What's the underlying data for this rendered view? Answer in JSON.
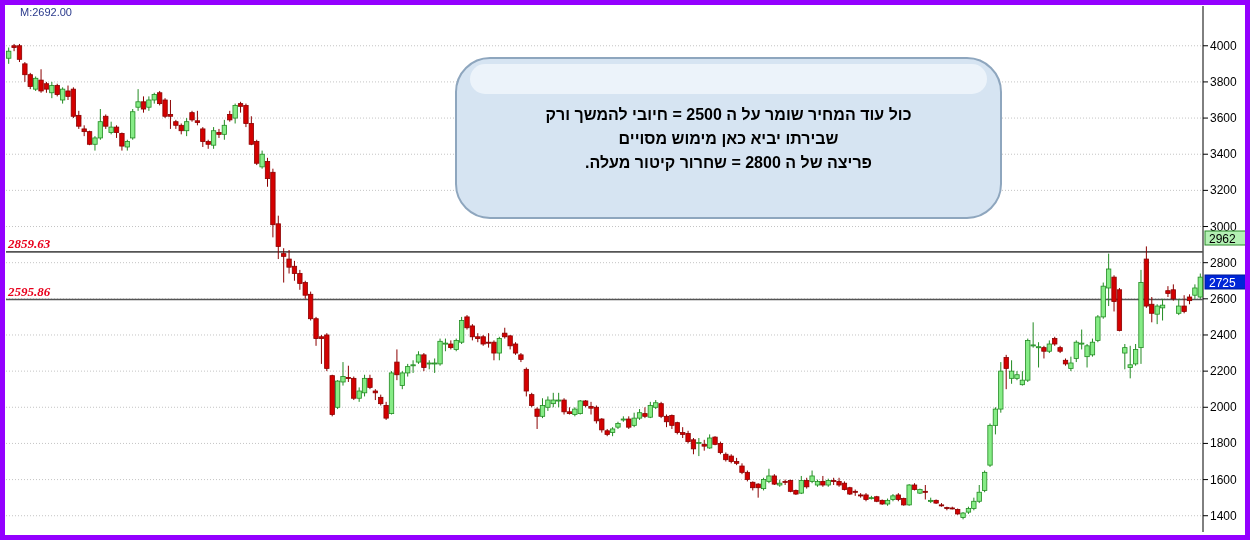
{
  "chart_data": {
    "type": "candlestick",
    "categories": [
      null,
      null,
      null,
      null,
      null,
      null,
      null,
      null,
      null,
      null,
      null,
      null,
      null,
      null,
      null,
      null,
      null,
      null,
      null,
      null,
      null,
      null,
      null,
      null,
      null,
      null,
      null,
      null,
      null,
      null,
      null,
      null,
      null,
      null,
      null,
      null,
      null,
      null,
      null,
      null,
      null,
      null,
      null,
      null,
      null,
      null,
      null,
      null,
      null,
      null,
      null,
      null,
      null,
      null,
      null,
      null,
      null,
      null,
      null,
      null,
      null,
      null,
      null,
      null,
      null,
      null,
      null,
      null,
      null,
      null,
      null,
      null,
      null,
      null,
      null,
      null,
      null,
      null,
      null,
      null,
      null,
      null,
      null,
      null,
      null,
      null,
      null,
      null,
      null,
      null,
      null,
      null,
      null,
      null,
      null,
      null,
      null,
      null,
      null,
      null,
      null,
      null,
      null,
      null,
      null,
      null,
      null,
      null,
      null,
      null,
      null,
      null,
      null,
      null,
      null,
      null,
      null,
      null,
      null,
      null,
      null,
      null,
      null,
      null,
      null,
      null,
      null,
      null,
      null,
      null,
      null,
      null,
      null,
      null,
      null,
      null,
      null,
      null,
      null,
      null,
      null,
      null,
      null,
      null,
      null,
      null,
      null,
      null,
      null,
      null,
      null,
      null,
      null,
      null,
      null,
      null,
      null,
      null,
      null,
      null,
      null,
      null,
      null,
      null,
      null,
      null,
      null,
      null,
      null,
      null,
      null,
      null,
      null,
      null,
      null,
      null,
      null,
      null,
      null,
      null,
      null,
      null,
      null,
      null,
      null,
      null,
      null,
      null,
      null,
      null,
      null,
      null,
      null,
      null,
      null,
      null,
      null,
      null,
      null,
      null,
      null,
      null,
      null,
      null,
      null,
      null,
      null,
      null,
      null,
      null,
      null,
      null,
      null,
      null,
      null,
      null,
      null,
      null,
      null,
      null,
      null,
      null
    ],
    "ohlc": [
      [
        3931,
        3990,
        3900,
        3970
      ],
      [
        4000,
        4010,
        3970,
        3990
      ],
      [
        4000,
        4010,
        3910,
        3925
      ],
      [
        3900,
        3910,
        3800,
        3840
      ],
      [
        3840,
        3850,
        3760,
        3775
      ],
      [
        3760,
        3830,
        3750,
        3820
      ],
      [
        3810,
        3870,
        3740,
        3750
      ],
      [
        3790,
        3800,
        3740,
        3760
      ],
      [
        3740,
        3800,
        3710,
        3780
      ],
      [
        3780,
        3790,
        3720,
        3730
      ],
      [
        3700,
        3770,
        3680,
        3760
      ],
      [
        3750,
        3780,
        3700,
        3720
      ],
      [
        3760,
        3770,
        3600,
        3610
      ],
      [
        3615,
        3640,
        3540,
        3555
      ],
      [
        3540,
        3560,
        3500,
        3525
      ],
      [
        3525,
        3530,
        3450,
        3455
      ],
      [
        3455,
        3500,
        3420,
        3490
      ],
      [
        3490,
        3650,
        3480,
        3580
      ],
      [
        3610,
        3620,
        3540,
        3555
      ],
      [
        3520,
        3580,
        3510,
        3550
      ],
      [
        3550,
        3560,
        3490,
        3520
      ],
      [
        3515,
        3520,
        3420,
        3445
      ],
      [
        3440,
        3480,
        3420,
        3470
      ],
      [
        3490,
        3650,
        3480,
        3635
      ],
      [
        3660,
        3760,
        3640,
        3690
      ],
      [
        3690,
        3720,
        3630,
        3650
      ],
      [
        3660,
        3720,
        3640,
        3700
      ],
      [
        3700,
        3740,
        3680,
        3730
      ],
      [
        3740,
        3750,
        3670,
        3680
      ],
      [
        3700,
        3710,
        3600,
        3610
      ],
      [
        3620,
        3700,
        3540,
        3610
      ],
      [
        3580,
        3590,
        3540,
        3560
      ],
      [
        3560,
        3570,
        3510,
        3530
      ],
      [
        3530,
        3600,
        3500,
        3580
      ],
      [
        3630,
        3640,
        3580,
        3590
      ],
      [
        3585,
        3640,
        3560,
        3575
      ],
      [
        3540,
        3550,
        3440,
        3470
      ],
      [
        3470,
        3480,
        3430,
        3455
      ],
      [
        3450,
        3550,
        3430,
        3530
      ],
      [
        3520,
        3540,
        3490,
        3510
      ],
      [
        3510,
        3590,
        3480,
        3560
      ],
      [
        3620,
        3640,
        3580,
        3590
      ],
      [
        3600,
        3680,
        3570,
        3670
      ],
      [
        3680,
        3690,
        3630,
        3665
      ],
      [
        3670,
        3680,
        3550,
        3570
      ],
      [
        3570,
        3610,
        3450,
        3455
      ],
      [
        3470,
        3480,
        3340,
        3350
      ],
      [
        3330,
        3420,
        3320,
        3400
      ],
      [
        3360,
        3380,
        3220,
        3265
      ],
      [
        3300,
        3320,
        2940,
        3010
      ],
      [
        3015,
        3060,
        2820,
        2890
      ],
      [
        2850,
        2880,
        2690,
        2835
      ],
      [
        2820,
        2870,
        2740,
        2775
      ],
      [
        2780,
        2810,
        2700,
        2740
      ],
      [
        2740,
        2760,
        2650,
        2685
      ],
      [
        2690,
        2700,
        2600,
        2620
      ],
      [
        2625,
        2640,
        2480,
        2490
      ],
      [
        2490,
        2500,
        2340,
        2380
      ],
      [
        2390,
        2400,
        2240,
        2380
      ],
      [
        2400,
        2410,
        2200,
        2215
      ],
      [
        2175,
        2180,
        1950,
        1960
      ],
      [
        2000,
        2150,
        1990,
        2145
      ],
      [
        2140,
        2250,
        2120,
        2170
      ],
      [
        2165,
        2230,
        2140,
        2160
      ],
      [
        2160,
        2170,
        2040,
        2050
      ],
      [
        2050,
        2110,
        2030,
        2090
      ],
      [
        2080,
        2180,
        2060,
        2160
      ],
      [
        2160,
        2180,
        2100,
        2110
      ],
      [
        2090,
        2100,
        2040,
        2080
      ],
      [
        2055,
        2070,
        2010,
        2020
      ],
      [
        2010,
        2030,
        1930,
        1940
      ],
      [
        1965,
        2200,
        1960,
        2190
      ],
      [
        2250,
        2320,
        2150,
        2180
      ],
      [
        2120,
        2200,
        2100,
        2190
      ],
      [
        2190,
        2240,
        2170,
        2225
      ],
      [
        2230,
        2260,
        2190,
        2235
      ],
      [
        2250,
        2310,
        2240,
        2290
      ],
      [
        2290,
        2300,
        2200,
        2220
      ],
      [
        2240,
        2260,
        2210,
        2245
      ],
      [
        2240,
        2270,
        2190,
        2245
      ],
      [
        2240,
        2380,
        2230,
        2365
      ],
      [
        2350,
        2380,
        2310,
        2355
      ],
      [
        2350,
        2370,
        2320,
        2330
      ],
      [
        2320,
        2380,
        2310,
        2370
      ],
      [
        2360,
        2500,
        2350,
        2480
      ],
      [
        2500,
        2510,
        2430,
        2440
      ],
      [
        2450,
        2460,
        2370,
        2390
      ],
      [
        2390,
        2410,
        2360,
        2380
      ],
      [
        2390,
        2400,
        2340,
        2350
      ],
      [
        2360,
        2410,
        2330,
        2355
      ],
      [
        2360,
        2370,
        2260,
        2300
      ],
      [
        2300,
        2390,
        2260,
        2380
      ],
      [
        2410,
        2440,
        2380,
        2390
      ],
      [
        2395,
        2400,
        2320,
        2340
      ],
      [
        2350,
        2360,
        2290,
        2300
      ],
      [
        2290,
        2300,
        2250,
        2265
      ],
      [
        2210,
        2220,
        2060,
        2090
      ],
      [
        2070,
        2080,
        2000,
        2010
      ],
      [
        1990,
        2000,
        1880,
        1950
      ],
      [
        1950,
        2050,
        1940,
        2010
      ],
      [
        2000,
        2060,
        1980,
        2040
      ],
      [
        2020,
        2080,
        2000,
        2040
      ],
      [
        2035,
        2080,
        2000,
        2040
      ],
      [
        2040,
        2050,
        1960,
        1975
      ],
      [
        1975,
        2000,
        1960,
        1965
      ],
      [
        1960,
        2000,
        1950,
        1990
      ],
      [
        1965,
        2040,
        1960,
        2035
      ],
      [
        2035,
        2040,
        2000,
        2010
      ],
      [
        2005,
        2030,
        1960,
        1995
      ],
      [
        2000,
        2010,
        1910,
        1925
      ],
      [
        1935,
        1940,
        1860,
        1875
      ],
      [
        1870,
        1880,
        1840,
        1850
      ],
      [
        1860,
        1890,
        1840,
        1880
      ],
      [
        1890,
        1920,
        1880,
        1910
      ],
      [
        1930,
        1950,
        1920,
        1935
      ],
      [
        1935,
        1950,
        1880,
        1890
      ],
      [
        1900,
        1970,
        1890,
        1940
      ],
      [
        1940,
        1990,
        1930,
        1970
      ],
      [
        1965,
        2000,
        1940,
        1950
      ],
      [
        1945,
        2030,
        1940,
        2010
      ],
      [
        2000,
        2040,
        1990,
        2025
      ],
      [
        2020,
        2030,
        1940,
        1950
      ],
      [
        1950,
        1960,
        1890,
        1920
      ],
      [
        1955,
        1960,
        1880,
        1900
      ],
      [
        1915,
        1920,
        1850,
        1860
      ],
      [
        1860,
        1890,
        1830,
        1850
      ],
      [
        1855,
        1870,
        1800,
        1810
      ],
      [
        1820,
        1830,
        1740,
        1770
      ],
      [
        1800,
        1830,
        1730,
        1805
      ],
      [
        1795,
        1820,
        1760,
        1785
      ],
      [
        1775,
        1850,
        1770,
        1830
      ],
      [
        1835,
        1840,
        1790,
        1795
      ],
      [
        1800,
        1810,
        1740,
        1750
      ],
      [
        1740,
        1750,
        1700,
        1710
      ],
      [
        1730,
        1740,
        1690,
        1700
      ],
      [
        1700,
        1720,
        1680,
        1690
      ],
      [
        1675,
        1690,
        1630,
        1640
      ],
      [
        1640,
        1650,
        1590,
        1600
      ],
      [
        1585,
        1590,
        1540,
        1555
      ],
      [
        1575,
        1580,
        1500,
        1555
      ],
      [
        1550,
        1610,
        1540,
        1600
      ],
      [
        1590,
        1660,
        1580,
        1620
      ],
      [
        1620,
        1630,
        1570,
        1575
      ],
      [
        1570,
        1600,
        1560,
        1580
      ],
      [
        1590,
        1600,
        1570,
        1585
      ],
      [
        1595,
        1600,
        1530,
        1535
      ],
      [
        1540,
        1545,
        1515,
        1520
      ],
      [
        1525,
        1620,
        1520,
        1595
      ],
      [
        1595,
        1610,
        1550,
        1560
      ],
      [
        1590,
        1650,
        1580,
        1620
      ],
      [
        1570,
        1600,
        1560,
        1590
      ],
      [
        1590,
        1620,
        1560,
        1570
      ],
      [
        1570,
        1605,
        1560,
        1595
      ],
      [
        1595,
        1610,
        1570,
        1590
      ],
      [
        1590,
        1610,
        1560,
        1570
      ],
      [
        1580,
        1590,
        1540,
        1545
      ],
      [
        1555,
        1560,
        1515,
        1520
      ],
      [
        1535,
        1545,
        1510,
        1530
      ],
      [
        1515,
        1525,
        1500,
        1512
      ],
      [
        1515,
        1525,
        1480,
        1490
      ],
      [
        1495,
        1510,
        1490,
        1500
      ],
      [
        1505,
        1510,
        1475,
        1480
      ],
      [
        1485,
        1490,
        1460,
        1465
      ],
      [
        1465,
        1495,
        1455,
        1485
      ],
      [
        1490,
        1520,
        1480,
        1510
      ],
      [
        1515,
        1525,
        1480,
        1490
      ],
      [
        1495,
        1500,
        1455,
        1460
      ],
      [
        1460,
        1575,
        1455,
        1570
      ],
      [
        1570,
        1580,
        1540,
        1545
      ],
      [
        1525,
        1550,
        1520,
        1545
      ],
      [
        1535,
        1570,
        1490,
        1530
      ],
      [
        1485,
        1500,
        1470,
        1485
      ],
      [
        1485,
        1490,
        1465,
        1470
      ],
      [
        1460,
        1470,
        1450,
        1455
      ],
      [
        1445,
        1450,
        1430,
        1440
      ],
      [
        1443,
        1450,
        1435,
        1440
      ],
      [
        1435,
        1440,
        1405,
        1410
      ],
      [
        1390,
        1420,
        1380,
        1415
      ],
      [
        1420,
        1450,
        1410,
        1440
      ],
      [
        1440,
        1500,
        1430,
        1480
      ],
      [
        1480,
        1570,
        1470,
        1530
      ],
      [
        1540,
        1650,
        1530,
        1640
      ],
      [
        1680,
        1910,
        1670,
        1900
      ],
      [
        1900,
        2000,
        1850,
        1990
      ],
      [
        1990,
        2250,
        1970,
        2200
      ],
      [
        2275,
        2290,
        2100,
        2215
      ],
      [
        2160,
        2260,
        2130,
        2200
      ],
      [
        2160,
        2200,
        2150,
        2180
      ],
      [
        2125,
        2200,
        2120,
        2150
      ],
      [
        2150,
        2380,
        2140,
        2370
      ],
      [
        2340,
        2470,
        2330,
        2345
      ],
      [
        2330,
        2360,
        2220,
        2335
      ],
      [
        2330,
        2340,
        2270,
        2310
      ],
      [
        2310,
        2370,
        2300,
        2350
      ],
      [
        2380,
        2390,
        2340,
        2350
      ],
      [
        2330,
        2340,
        2300,
        2310
      ],
      [
        2260,
        2270,
        2230,
        2240
      ],
      [
        2215,
        2280,
        2200,
        2245
      ],
      [
        2270,
        2370,
        2250,
        2360
      ],
      [
        2355,
        2430,
        2320,
        2355
      ],
      [
        2280,
        2350,
        2220,
        2340
      ],
      [
        2290,
        2380,
        2280,
        2360
      ],
      [
        2370,
        2510,
        2360,
        2500
      ],
      [
        2500,
        2690,
        2490,
        2670
      ],
      [
        2660,
        2850,
        2560,
        2765
      ],
      [
        2720,
        2730,
        2530,
        2585
      ],
      [
        2650,
        2660,
        2420,
        2425
      ],
      [
        2300,
        2350,
        2210,
        2330
      ],
      [
        2220,
        2340,
        2160,
        2235
      ],
      [
        2240,
        2350,
        2230,
        2320
      ],
      [
        2330,
        2760,
        2240,
        2690
      ],
      [
        2820,
        2890,
        2550,
        2560
      ],
      [
        2570,
        2610,
        2470,
        2520
      ],
      [
        2515,
        2570,
        2460,
        2560
      ],
      [
        2550,
        2600,
        2480,
        2565
      ],
      [
        2645,
        2670,
        2610,
        2630
      ],
      [
        2650,
        2680,
        2590,
        2600
      ],
      [
        2520,
        2600,
        2510,
        2560
      ],
      [
        2560,
        2620,
        2520,
        2530
      ],
      [
        2610,
        2625,
        2570,
        2590
      ],
      [
        2620,
        2680,
        2600,
        2660
      ],
      [
        2610,
        2740,
        2600,
        2720
      ]
    ],
    "ylim": [
      1310,
      4220
    ],
    "yticks": [
      1400,
      1600,
      1800,
      2000,
      2200,
      2400,
      2600,
      2800,
      3000,
      3200,
      3400,
      3600,
      3800,
      4000
    ],
    "grid": "y",
    "tick_labels": "y",
    "ref_lines": [
      {
        "axis": "y",
        "value": 2859.63,
        "label": "2859.63",
        "color": "#555555"
      },
      {
        "axis": "y",
        "value": 2595.86,
        "label": "2595.86",
        "color": "#555555"
      }
    ],
    "annotations": [
      "M:2692.00",
      "2962",
      "2725",
      "כול עוד המחיר שומר על ה 2500 = חיובי להמשך ורק",
      "שבירתו יביא כאן מימוש מסויים",
      "פריצה של ה 2800 = שחרור קיטור מעלה."
    ]
  }
}
